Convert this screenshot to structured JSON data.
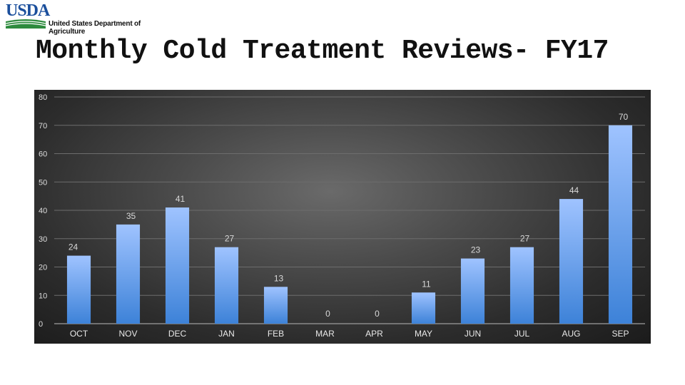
{
  "header": {
    "logo_text": "USDA",
    "agency": "United States Department of Agriculture",
    "title": "Monthly Cold Treatment Reviews- FY17"
  },
  "colors": {
    "bar_top": "#9fc3ff",
    "bar_bottom": "#3d82d8",
    "panel_dark": "#1b1b1b",
    "logo_blue": "#1b4f9c",
    "logo_green": "#2e8b3e"
  },
  "chart_data": {
    "type": "bar",
    "categories": [
      "OCT",
      "NOV",
      "DEC",
      "JAN",
      "FEB",
      "MAR",
      "APR",
      "MAY",
      "JUN",
      "JUL",
      "AUG",
      "SEP"
    ],
    "values": [
      24,
      35,
      41,
      27,
      13,
      0,
      0,
      11,
      23,
      27,
      44,
      70
    ],
    "title": "",
    "xlabel": "",
    "ylabel": "",
    "ylim": [
      0,
      80
    ],
    "yticks": [
      0,
      10,
      20,
      30,
      40,
      50,
      60,
      70,
      80
    ],
    "grid": true,
    "legend": "none",
    "data_labels": true
  }
}
